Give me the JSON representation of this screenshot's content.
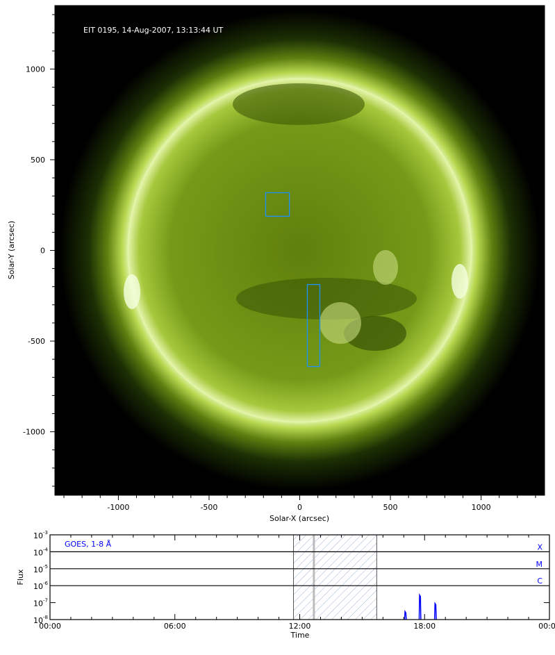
{
  "image_panel": {
    "title": "EIT 0195, 14-Aug-2007, 13:13:44 UT",
    "xlabel": "Solar-X (arcsec)",
    "ylabel": "Solar-Y (arcsec)",
    "xlim": [
      -1350,
      1350
    ],
    "ylim": [
      -1350,
      1350
    ],
    "xticks": [
      -1000,
      -500,
      0,
      500,
      1000
    ],
    "yticks": [
      -1000,
      -500,
      0,
      500,
      1000
    ],
    "solar_radius_arcsec": 960,
    "colors": {
      "disk": "#6f8f12",
      "limb": "#eaf7b0",
      "background": "#000000",
      "box": "#1e90ff"
    },
    "boxes": [
      {
        "x": [
          -188,
          -57
        ],
        "y": [
          188,
          318
        ]
      },
      {
        "x": [
          42,
          111
        ],
        "y": [
          -640,
          -188
        ]
      }
    ]
  },
  "chart_data": {
    "type": "line",
    "title": "",
    "legend": "GOES, 1-8 Å",
    "xlabel": "Time",
    "ylabel": "Flux",
    "xlim_hours": [
      0,
      24
    ],
    "xticks": [
      "00:00",
      "06:00",
      "12:00",
      "18:00",
      "00:00"
    ],
    "yscale": "log",
    "ylim": [
      1e-08,
      0.001
    ],
    "yticks": [
      "10^-3",
      "10^-4",
      "10^-5",
      "10^-6",
      "10^-7",
      "10^-8"
    ],
    "flare_class_lines": [
      {
        "label": "X",
        "value": 0.0001
      },
      {
        "label": "M",
        "value": 1e-05
      },
      {
        "label": "C",
        "value": 1e-06
      }
    ],
    "shaded_interval_hours": [
      11.7,
      15.7
    ],
    "marker_time_hours": 12.68,
    "series_color": "#0000ff",
    "series": [
      {
        "name": "GOES, 1-8 Å",
        "peaks": [
          {
            "t": 17.08,
            "flux": 3e-08
          },
          {
            "t": 17.78,
            "flux": 2.8e-07
          },
          {
            "t": 18.52,
            "flux": 9e-08
          }
        ]
      }
    ]
  }
}
